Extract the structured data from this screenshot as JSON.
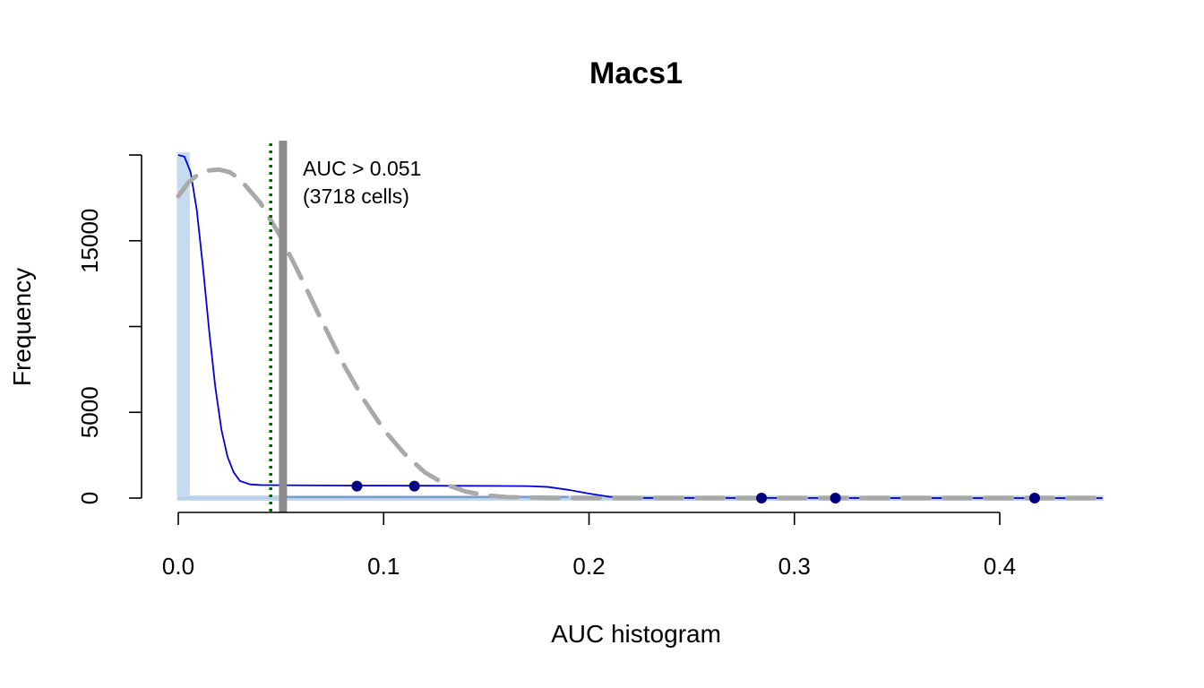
{
  "chart_data": {
    "type": "histogram",
    "title": "Macs1",
    "xlabel": "AUC histogram",
    "ylabel": "Frequency",
    "xlim": [
      0,
      0.45
    ],
    "ylim": [
      0,
      20000
    ],
    "x_ticks": [
      0,
      0.1,
      0.2,
      0.3,
      0.4
    ],
    "x_tick_labels": [
      "0.0",
      "0.1",
      "0.2",
      "0.3",
      "0.4"
    ],
    "y_ticks": [
      0,
      5000,
      10000,
      15000,
      20000
    ],
    "y_tick_labels": [
      "0",
      "5000",
      "",
      "15000",
      ""
    ],
    "histogram": {
      "color": "#c6dbef",
      "bin_width": 0.005,
      "bins": [
        {
          "x0": 0.0,
          "x1": 0.005,
          "count": 20000
        },
        {
          "x0": 0.005,
          "x1": 0.45,
          "count": 0
        }
      ]
    },
    "small_bins": {
      "color": "#6a8fc8",
      "range": [
        0.05,
        0.19
      ],
      "count": 120
    },
    "density_curve": {
      "color": "#0000dd",
      "points": [
        [
          0,
          20000
        ],
        [
          0.003,
          19900
        ],
        [
          0.006,
          19000
        ],
        [
          0.009,
          16800
        ],
        [
          0.012,
          13500
        ],
        [
          0.015,
          9800
        ],
        [
          0.018,
          6500
        ],
        [
          0.021,
          4000
        ],
        [
          0.024,
          2400
        ],
        [
          0.027,
          1500
        ],
        [
          0.03,
          1000
        ],
        [
          0.035,
          800
        ],
        [
          0.04,
          760
        ],
        [
          0.05,
          750
        ],
        [
          0.08,
          730
        ],
        [
          0.12,
          720
        ],
        [
          0.15,
          710
        ],
        [
          0.17,
          700
        ],
        [
          0.18,
          650
        ],
        [
          0.19,
          480
        ],
        [
          0.2,
          260
        ],
        [
          0.21,
          80
        ],
        [
          0.22,
          10
        ],
        [
          0.45,
          0
        ]
      ]
    },
    "bimodal_curve": {
      "color": "#a9a9a9",
      "style": "dashed",
      "points": [
        [
          0,
          17600
        ],
        [
          0.005,
          18400
        ],
        [
          0.01,
          18900
        ],
        [
          0.015,
          19100
        ],
        [
          0.02,
          19150
        ],
        [
          0.025,
          19000
        ],
        [
          0.03,
          18600
        ],
        [
          0.04,
          17200
        ],
        [
          0.05,
          15200
        ],
        [
          0.06,
          12800
        ],
        [
          0.07,
          10300
        ],
        [
          0.08,
          7900
        ],
        [
          0.09,
          5800
        ],
        [
          0.1,
          4000
        ],
        [
          0.11,
          2600
        ],
        [
          0.12,
          1500
        ],
        [
          0.13,
          800
        ],
        [
          0.14,
          380
        ],
        [
          0.15,
          160
        ],
        [
          0.16,
          60
        ],
        [
          0.18,
          10
        ],
        [
          0.2,
          0
        ],
        [
          0.45,
          0
        ]
      ]
    },
    "points": {
      "color": "#000080",
      "values": [
        [
          0.087,
          700
        ],
        [
          0.115,
          700
        ],
        [
          0.284,
          0
        ],
        [
          0.32,
          0
        ],
        [
          0.417,
          0
        ]
      ]
    },
    "threshold_lines": [
      {
        "x": 0.045,
        "color": "#006400",
        "style": "dotted"
      },
      {
        "x": 0.051,
        "color": "#8c8c8c",
        "style": "solid"
      }
    ],
    "annotation": {
      "lines": [
        "AUC > 0.051",
        "(3718 cells)"
      ]
    }
  }
}
